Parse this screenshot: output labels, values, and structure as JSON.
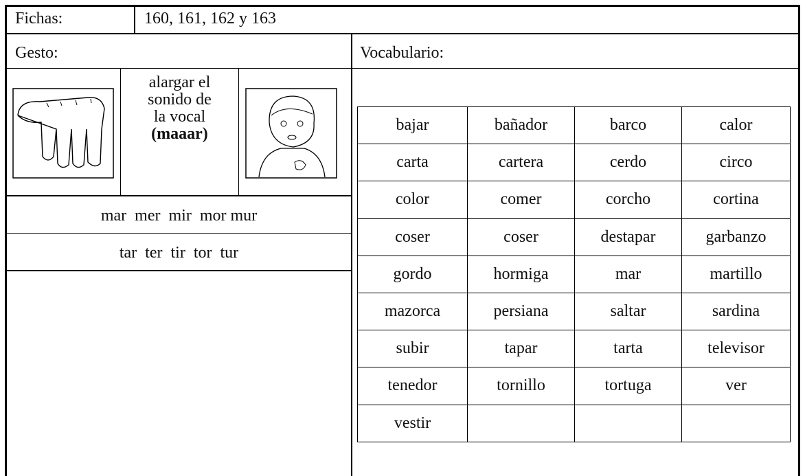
{
  "header": {
    "fichas_label": "Fichas:",
    "fichas_value": "160, 161, 162 y 163"
  },
  "gesto_label": "Gesto:",
  "vocabulario_label": "Vocabulario:",
  "gesture": {
    "lines": [
      "alargar el",
      "sonido de",
      "la vocal",
      "(maaar)"
    ]
  },
  "syllables": [
    "mar  mer  mir  mor mur",
    "tar  ter  tir  tor  tur"
  ],
  "vocabulary": {
    "rows": [
      [
        "bajar",
        "bañador",
        "barco",
        "calor"
      ],
      [
        "carta",
        "cartera",
        "cerdo",
        "circo"
      ],
      [
        "color",
        "comer",
        "corcho",
        "cortina"
      ],
      [
        "coser",
        "coser",
        "destapar",
        "garbanzo"
      ],
      [
        "gordo",
        "hormiga",
        "mar",
        "martillo"
      ],
      [
        "mazorca",
        "persiana",
        "saltar",
        "sardina"
      ],
      [
        "subir",
        "tapar",
        "tarta",
        "televisor"
      ],
      [
        "tenedor",
        "tornillo",
        "tortuga",
        "ver"
      ],
      [
        "vestir"
      ]
    ]
  }
}
